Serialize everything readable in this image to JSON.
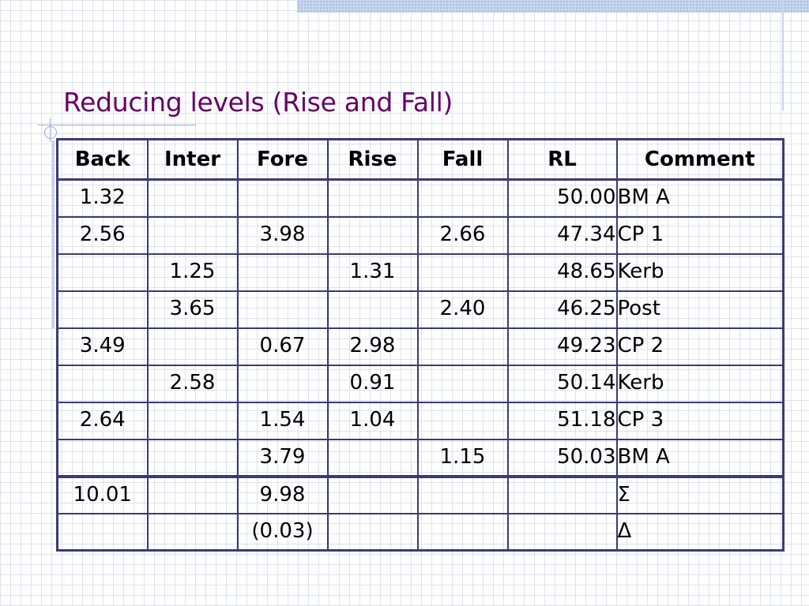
{
  "slide": {
    "title": "Reducing levels (Rise and Fall)"
  },
  "colors": {
    "title": "#660066",
    "table_border": "#3b3b73",
    "negative_value": "#e2250e",
    "grid_line": "#dde2f0",
    "accent_band": "#c8d6ee"
  },
  "table": {
    "headers": [
      "Back",
      "Inter",
      "Fore",
      "Rise",
      "Fall",
      "RL",
      "Comment"
    ],
    "rows": [
      [
        "1.32",
        "",
        "",
        "",
        "",
        "50.00",
        "BM A"
      ],
      [
        "2.56",
        "",
        "3.98",
        "",
        "2.66",
        "47.34",
        "CP 1"
      ],
      [
        "",
        "1.25",
        "",
        "1.31",
        "",
        "48.65",
        "Kerb"
      ],
      [
        "",
        "3.65",
        "",
        "",
        "2.40",
        "46.25",
        "Post"
      ],
      [
        "3.49",
        "",
        "0.67",
        "2.98",
        "",
        "49.23",
        "CP 2"
      ],
      [
        "",
        "2.58",
        "",
        "0.91",
        "",
        "50.14",
        "Kerb"
      ],
      [
        "2.64",
        "",
        "1.54",
        "1.04",
        "",
        "51.18",
        "CP 3"
      ],
      [
        "",
        "",
        "3.79",
        "",
        "1.15",
        "50.03",
        "BM A"
      ]
    ],
    "summary_rows": [
      [
        "10.01",
        "",
        "9.98",
        "",
        "",
        "",
        "Σ"
      ],
      [
        "",
        "",
        "(0.03)",
        "",
        "",
        "",
        "Δ"
      ]
    ]
  }
}
